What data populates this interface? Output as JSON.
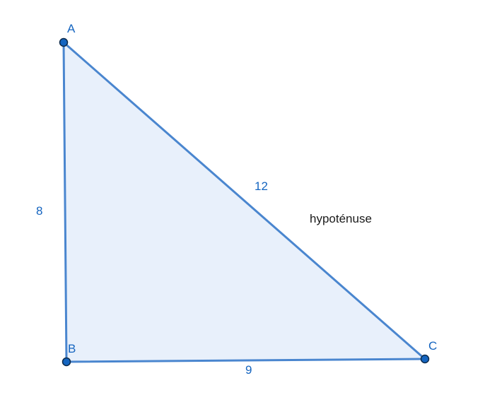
{
  "triangle": {
    "vertices": {
      "A": {
        "label": "A"
      },
      "B": {
        "label": "B"
      },
      "C": {
        "label": "C"
      }
    },
    "sides": {
      "AB": {
        "length": "8"
      },
      "BC": {
        "length": "9"
      },
      "AC": {
        "length": "12"
      }
    },
    "hypotenuse_label": "hypoténuse"
  },
  "colors": {
    "stroke": "#4a86cf",
    "fill": "#e8f0fb",
    "point_fill": "#1565c0",
    "point_stroke": "#0d2a4a",
    "label_blue": "#1565c0",
    "label_dark": "#1a1a1a"
  }
}
